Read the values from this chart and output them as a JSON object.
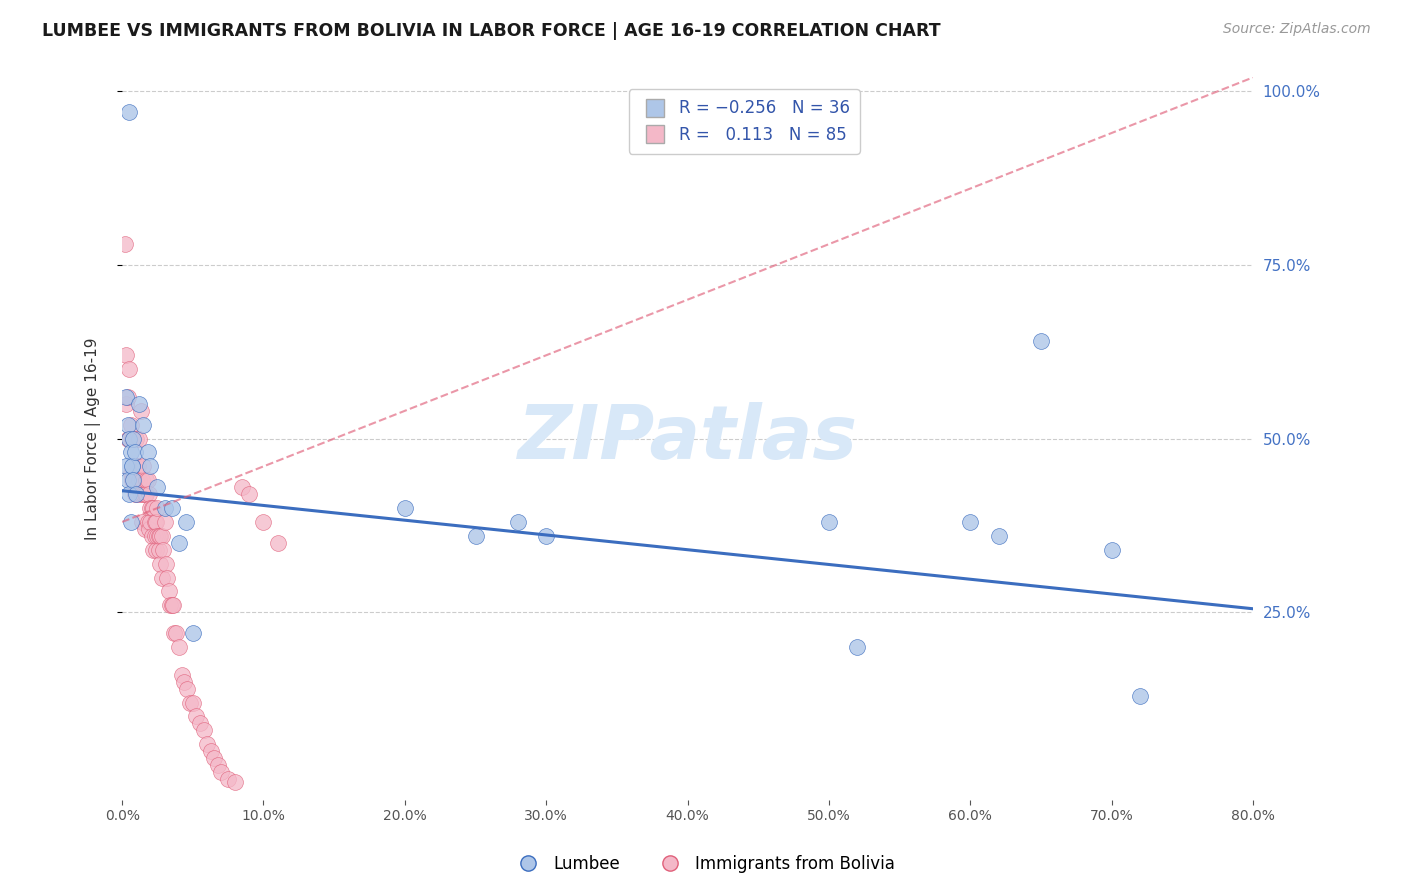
{
  "title": "LUMBEE VS IMMIGRANTS FROM BOLIVIA IN LABOR FORCE | AGE 16-19 CORRELATION CHART",
  "source": "Source: ZipAtlas.com",
  "ylabel": "In Labor Force | Age 16-19",
  "legend_lumbee": "Lumbee",
  "legend_bolivia": "Immigrants from Bolivia",
  "lumbee_R": -0.256,
  "lumbee_N": 36,
  "bolivia_R": 0.113,
  "bolivia_N": 85,
  "lumbee_color": "#aec6e8",
  "bolivia_color": "#f4b8c8",
  "lumbee_line_color": "#3b6dbf",
  "bolivia_line_color": "#e0607a",
  "watermark_color": "#d8e8f8",
  "xlim": [
    0.0,
    0.8
  ],
  "ylim": [
    -0.02,
    1.02
  ],
  "yticks_right": [
    0.25,
    0.5,
    0.75,
    1.0
  ],
  "yticks_grid": [
    0.25,
    0.5,
    0.75,
    1.0
  ],
  "xticks": [
    0.0,
    0.1,
    0.2,
    0.3,
    0.4,
    0.5,
    0.6,
    0.7,
    0.8
  ],
  "lumbee_x": [
    0.005,
    0.003,
    0.004,
    0.005,
    0.006,
    0.007,
    0.008,
    0.003,
    0.004,
    0.005,
    0.006,
    0.007,
    0.008,
    0.009,
    0.01,
    0.012,
    0.015,
    0.018,
    0.02,
    0.025,
    0.03,
    0.035,
    0.04,
    0.045,
    0.05,
    0.2,
    0.25,
    0.28,
    0.3,
    0.5,
    0.52,
    0.6,
    0.62,
    0.65,
    0.7,
    0.72
  ],
  "lumbee_y": [
    0.97,
    0.56,
    0.52,
    0.5,
    0.48,
    0.46,
    0.5,
    0.46,
    0.44,
    0.42,
    0.38,
    0.46,
    0.44,
    0.48,
    0.42,
    0.55,
    0.52,
    0.48,
    0.46,
    0.43,
    0.4,
    0.4,
    0.35,
    0.38,
    0.22,
    0.4,
    0.36,
    0.38,
    0.36,
    0.38,
    0.2,
    0.38,
    0.36,
    0.64,
    0.34,
    0.13
  ],
  "bolivia_x": [
    0.002,
    0.003,
    0.003,
    0.004,
    0.004,
    0.005,
    0.005,
    0.006,
    0.006,
    0.007,
    0.007,
    0.008,
    0.008,
    0.009,
    0.009,
    0.01,
    0.01,
    0.01,
    0.01,
    0.011,
    0.011,
    0.012,
    0.012,
    0.013,
    0.013,
    0.014,
    0.014,
    0.015,
    0.015,
    0.016,
    0.016,
    0.017,
    0.017,
    0.018,
    0.018,
    0.019,
    0.019,
    0.02,
    0.02,
    0.021,
    0.021,
    0.022,
    0.022,
    0.023,
    0.023,
    0.024,
    0.024,
    0.025,
    0.025,
    0.026,
    0.026,
    0.027,
    0.027,
    0.028,
    0.028,
    0.029,
    0.03,
    0.031,
    0.032,
    0.033,
    0.034,
    0.035,
    0.036,
    0.037,
    0.038,
    0.04,
    0.042,
    0.044,
    0.046,
    0.048,
    0.05,
    0.052,
    0.055,
    0.058,
    0.06,
    0.063,
    0.065,
    0.068,
    0.07,
    0.075,
    0.08,
    0.085,
    0.09,
    0.1,
    0.11
  ],
  "bolivia_y": [
    0.78,
    0.62,
    0.55,
    0.56,
    0.5,
    0.6,
    0.5,
    0.52,
    0.45,
    0.5,
    0.44,
    0.5,
    0.44,
    0.46,
    0.42,
    0.5,
    0.46,
    0.44,
    0.43,
    0.46,
    0.42,
    0.5,
    0.44,
    0.54,
    0.42,
    0.44,
    0.38,
    0.46,
    0.42,
    0.42,
    0.37,
    0.44,
    0.42,
    0.44,
    0.38,
    0.42,
    0.37,
    0.4,
    0.38,
    0.4,
    0.36,
    0.4,
    0.34,
    0.38,
    0.36,
    0.38,
    0.34,
    0.4,
    0.36,
    0.36,
    0.34,
    0.36,
    0.32,
    0.36,
    0.3,
    0.34,
    0.38,
    0.32,
    0.3,
    0.28,
    0.26,
    0.26,
    0.26,
    0.22,
    0.22,
    0.2,
    0.16,
    0.15,
    0.14,
    0.12,
    0.12,
    0.1,
    0.09,
    0.08,
    0.06,
    0.05,
    0.04,
    0.03,
    0.02,
    0.01,
    0.005,
    0.43,
    0.42,
    0.38,
    0.35
  ],
  "bolivia_trend_x0": 0.0,
  "bolivia_trend_y0": 0.38,
  "bolivia_trend_x1": 0.8,
  "bolivia_trend_y1": 1.02,
  "lumbee_trend_x0": 0.0,
  "lumbee_trend_y0": 0.425,
  "lumbee_trend_x1": 0.8,
  "lumbee_trend_y1": 0.255
}
